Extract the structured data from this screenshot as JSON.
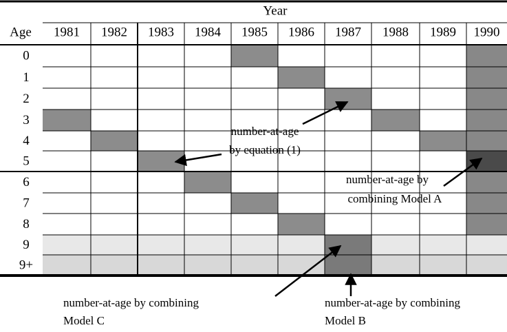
{
  "header": {
    "title": "Year",
    "age": "Age"
  },
  "table": {
    "years": [
      "1981",
      "1982",
      "1983",
      "1984",
      "1985",
      "1986",
      "1987",
      "1988",
      "1989",
      "1990"
    ],
    "ages": [
      "0",
      "1",
      "2",
      "3",
      "4",
      "5",
      "6",
      "7",
      "8",
      "9",
      "9+"
    ]
  },
  "annotations": {
    "equation": [
      "number-at-age",
      "by equation (1)"
    ],
    "model_a": [
      "number-at-age by",
      "combining Model A"
    ],
    "model_c": [
      "number-at-age by combining",
      "Model C"
    ],
    "model_b": [
      "number-at-age by combining",
      "Model B"
    ]
  }
}
